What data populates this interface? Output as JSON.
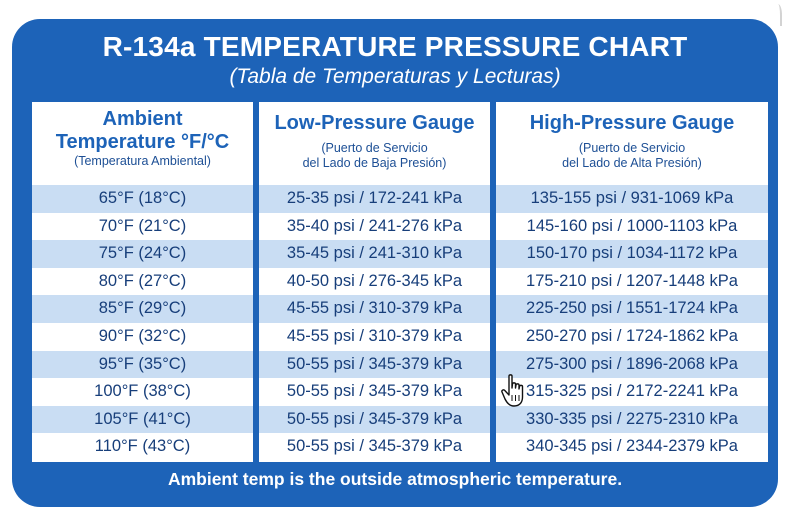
{
  "chart": {
    "title": "R-134a TEMPERATURE PRESSURE CHART",
    "subtitle": "(Tabla de Temperaturas y Lecturas)"
  },
  "headers": {
    "ambient": {
      "line1": "Ambient",
      "line2": "Temperature °F/°C",
      "sub": "(Temperatura Ambiental)"
    },
    "low": {
      "line1": "Low-Pressure Gauge",
      "sub1": "(Puerto de Servicio",
      "sub2": "del Lado de Baja Presión)"
    },
    "high": {
      "line1": "High-Pressure Gauge",
      "sub1": "(Puerto de Servicio",
      "sub2": "del Lado de Alta Presión)"
    }
  },
  "rows": [
    {
      "ambient": "65°F (18°C)",
      "low": "25-35 psi / 172-241 kPa",
      "high": "135-155 psi / 931-1069 kPa"
    },
    {
      "ambient": "70°F (21°C)",
      "low": "35-40 psi / 241-276 kPa",
      "high": "145-160 psi / 1000-1103 kPa"
    },
    {
      "ambient": "75°F (24°C)",
      "low": "35-45 psi / 241-310 kPa",
      "high": "150-170 psi / 1034-1172 kPa"
    },
    {
      "ambient": "80°F (27°C)",
      "low": "40-50 psi / 276-345 kPa",
      "high": "175-210 psi / 1207-1448 kPa"
    },
    {
      "ambient": "85°F (29°C)",
      "low": "45-55 psi / 310-379 kPa",
      "high": "225-250 psi / 1551-1724 kPa"
    },
    {
      "ambient": "90°F (32°C)",
      "low": "45-55 psi / 310-379 kPa",
      "high": "250-270 psi / 1724-1862 kPa"
    },
    {
      "ambient": "95°F (35°C)",
      "low": "50-55 psi / 345-379 kPa",
      "high": "275-300 psi / 1896-2068 kPa"
    },
    {
      "ambient": "100°F (38°C)",
      "low": "50-55 psi / 345-379 kPa",
      "high": "315-325 psi / 2172-2241 kPa"
    },
    {
      "ambient": "105°F (41°C)",
      "low": "50-55 psi / 345-379 kPa",
      "high": "330-335 psi / 2275-2310 kPa"
    },
    {
      "ambient": "110°F (43°C)",
      "low": "50-55 psi / 345-379 kPa",
      "high": "340-345 psi / 2344-2379 kPa"
    }
  ],
  "footer": "Ambient temp is the outside atmospheric temperature.",
  "cursor_icon": "hand-pointer-icon",
  "colors": {
    "card_blue": "#1d63b8",
    "row_shade": "#c9ddf3",
    "text_blue": "#173e7a"
  }
}
